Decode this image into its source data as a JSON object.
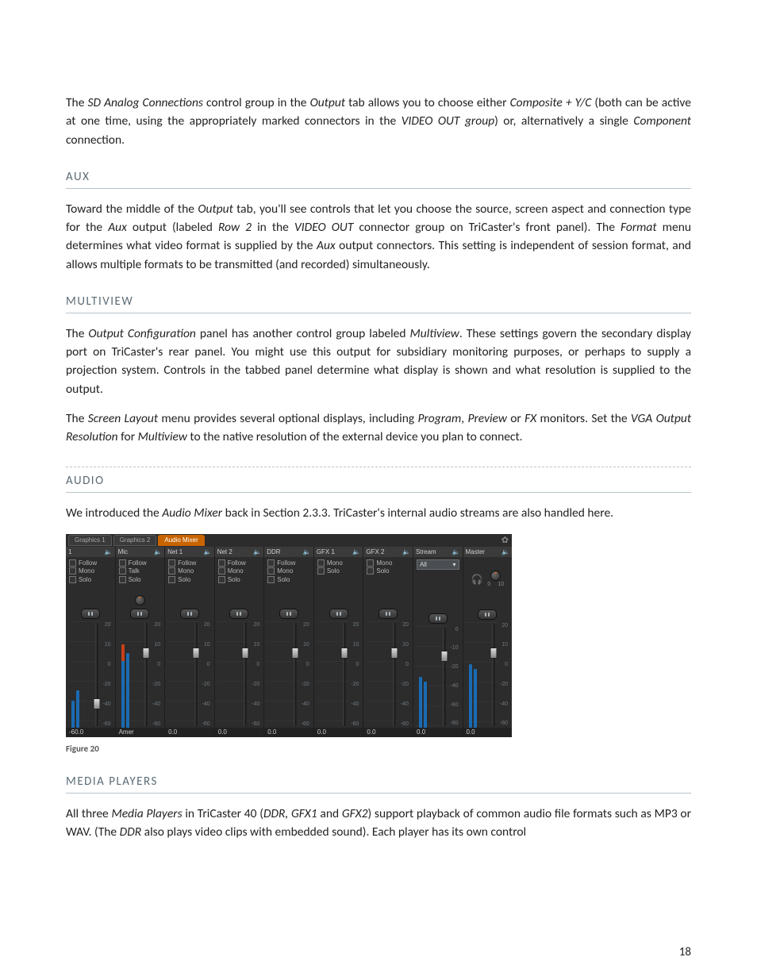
{
  "page_number": "18",
  "intro_paragraph": {
    "p1_a": "The ",
    "p1_b": "SD Analog Connections",
    "p1_c": " control group in the ",
    "p1_d": "Output",
    "p1_e": " tab allows you to choose either ",
    "p1_f": "Composite + Y/C",
    "p1_g": " (both can be active at one time, using the appropriately marked connectors in the ",
    "p1_h": "VIDEO OUT group",
    "p1_i": ") or, alternatively a single ",
    "p1_j": "Component",
    "p1_k": " connection."
  },
  "sections": {
    "aux": {
      "head": "AUX",
      "a": "Toward the middle of the ",
      "b": "Output",
      "c": " tab, you'll see controls that let you choose the source, screen aspect and connection type for the ",
      "d": "Aux",
      "e": " output (labeled ",
      "f": "Row 2",
      "g": " in the ",
      "h": "VIDEO OUT",
      "i": " connector group on TriCaster's front panel).  The ",
      "j": "Format",
      "k": " menu determines what video format is supplied by the ",
      "l": "Aux",
      "m": " output connectors.  This setting is independent of session format, and allows multiple formats to be transmitted (and recorded) simultaneously."
    },
    "multiview": {
      "head": "MULTIVIEW",
      "p1a": "The ",
      "p1b": "Output Configuration",
      "p1c": " panel has another control group labeled ",
      "p1d": "Multiview",
      "p1e": ". These settings govern the secondary display port on TriCaster's rear panel. You might use this output for subsidiary monitoring purposes, or perhaps to supply a projection system.  Controls in the tabbed panel determine what display is shown and what resolution is supplied to the output.",
      "p2a": "The ",
      "p2b": "Screen Layout",
      "p2c": " menu provides several optional displays, including ",
      "p2d": "Program",
      "p2e": ", ",
      "p2f": "Preview",
      "p2g": " or ",
      "p2h": "FX",
      "p2i": " monitors. Set the ",
      "p2j": "VGA Output Resolution",
      "p2k": " for ",
      "p2l": "Multiview",
      "p2m": " to the native resolution of the external device you plan to connect."
    },
    "audio": {
      "head": "AUDIO",
      "a": "We introduced the ",
      "b": "Audio Mixer",
      "c": " back in Section 2.3.3. TriCaster's internal audio streams are also handled here."
    },
    "media": {
      "head": "MEDIA PLAYERS",
      "a": "All three ",
      "b": "Media Players",
      "c": " in TriCaster 40 (",
      "d": "DDR, GFX1",
      "e": " and ",
      "f": "GFX2",
      "g": ") support playback of common audio file formats such as MP3 or WAV. (The ",
      "h": "DDR",
      "i": " also plays video clips with embedded sound). Each player has its own control"
    }
  },
  "figure_caption": "Figure 20",
  "mixer": {
    "background": "#2c2c2c",
    "tabs": {
      "g1": "Graphics 1",
      "g2": "Graphics 2",
      "am": "Audio Mixer",
      "gear": "✿"
    },
    "check_labels": {
      "follow": "Follow",
      "mono": "Mono",
      "solo": "Solo",
      "talk": "Talk"
    },
    "scale_std": [
      "20",
      "10",
      "0",
      "-20",
      "-40",
      "-60"
    ],
    "scale_stream": [
      "0",
      "-10",
      "-20",
      "-40",
      "-60",
      "-80"
    ],
    "channels": [
      {
        "name": "1",
        "checks": [
          "follow",
          "mono",
          "solo"
        ],
        "knob": false,
        "fader_pos": 0.78,
        "bars": [
          0.25,
          0.35
        ],
        "bar_colors": [
          "#1a6bb3",
          "#1a6bb3"
        ],
        "foot": "-60.0",
        "scale": "std"
      },
      {
        "name": "Mic",
        "checks": [
          "follow",
          "talk",
          "solo"
        ],
        "knob": true,
        "fader_pos": 0.3,
        "bars": [
          0.78,
          0.7
        ],
        "bar_colors": [
          "#c8401a",
          "#1a6bb3"
        ],
        "foot": "Amer",
        "scale": "std"
      },
      {
        "name": "Net 1",
        "checks": [
          "follow",
          "mono",
          "solo"
        ],
        "knob": false,
        "fader_pos": 0.3,
        "bars": [
          0.0,
          0.0
        ],
        "bar_colors": [
          "#1a6bb3",
          "#1a6bb3"
        ],
        "foot": "0.0",
        "scale": "std"
      },
      {
        "name": "Net 2",
        "checks": [
          "follow",
          "mono",
          "solo"
        ],
        "knob": false,
        "fader_pos": 0.3,
        "bars": [
          0.0,
          0.0
        ],
        "bar_colors": [
          "#1a6bb3",
          "#1a6bb3"
        ],
        "foot": "0.0",
        "scale": "std"
      },
      {
        "name": "DDR",
        "checks": [
          "follow",
          "mono",
          "solo"
        ],
        "knob": false,
        "fader_pos": 0.3,
        "bars": [
          0.0,
          0.0
        ],
        "bar_colors": [
          "#1a6bb3",
          "#1a6bb3"
        ],
        "foot": "0.0",
        "scale": "std"
      },
      {
        "name": "GFX 1",
        "checks": [
          "mono",
          "solo"
        ],
        "knob": false,
        "fader_pos": 0.3,
        "bars": [
          0.0,
          0.0
        ],
        "bar_colors": [
          "#1a6bb3",
          "#1a6bb3"
        ],
        "foot": "0.0",
        "scale": "std"
      },
      {
        "name": "GFX 2",
        "checks": [
          "mono",
          "solo"
        ],
        "knob": false,
        "fader_pos": 0.3,
        "bars": [
          0.0,
          0.0
        ],
        "bar_colors": [
          "#1a6bb3",
          "#1a6bb3"
        ],
        "foot": "0.0",
        "scale": "std"
      },
      {
        "name": "Stream",
        "dropdown": "All",
        "knob": false,
        "fader_pos": 0.3,
        "bars": [
          0.5,
          0.45
        ],
        "bar_colors": [
          "#1a6bb3",
          "#1a6bb3"
        ],
        "foot": "0.0",
        "scale": "stream"
      },
      {
        "name": "Master",
        "master": true,
        "knob": true,
        "fader_pos": 0.3,
        "bars": [
          0.6,
          0.55
        ],
        "bar_colors": [
          "#1a6bb3",
          "#1a6bb3"
        ],
        "foot": "0.0",
        "scale": "std",
        "master_scale": [
          "0",
          "10"
        ]
      }
    ]
  }
}
